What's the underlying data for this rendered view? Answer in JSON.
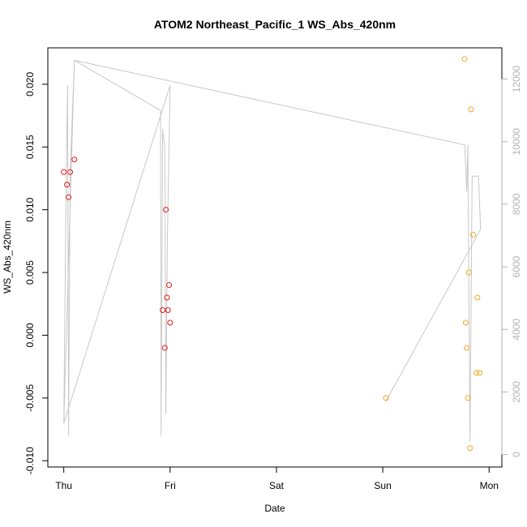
{
  "chart_data": {
    "type": "scatter",
    "title": "ATOM2 Northeast_Pacific_1 WS_Abs_420nm",
    "xlabel": "Date",
    "ylabel": "WS_Abs_420nm",
    "x_unit": "days",
    "x_ticks": [
      {
        "label": "Thu",
        "value": 0
      },
      {
        "label": "Fri",
        "value": 1
      },
      {
        "label": "Sat",
        "value": 2
      },
      {
        "label": "Sun",
        "value": 3
      },
      {
        "label": "Mon",
        "value": 4
      }
    ],
    "xlim": [
      -0.15,
      4.12
    ],
    "ylim": [
      -0.0105,
      0.0229
    ],
    "y_ticks": [
      {
        "label": "-0.010",
        "value": -0.01
      },
      {
        "label": "-0.005",
        "value": -0.005
      },
      {
        "label": "0.000",
        "value": 0
      },
      {
        "label": "0.005",
        "value": 0.005
      },
      {
        "label": "0.010",
        "value": 0.01
      },
      {
        "label": "0.015",
        "value": 0.015
      },
      {
        "label": "0.020",
        "value": 0.02
      }
    ],
    "y2_ticks": [
      {
        "label": "0",
        "value": 0
      },
      {
        "label": "2000",
        "value": 2000
      },
      {
        "label": "4000",
        "value": 4000
      },
      {
        "label": "6000",
        "value": 6000
      },
      {
        "label": "8000",
        "value": 8000
      },
      {
        "label": "10000",
        "value": 10000
      },
      {
        "label": "12000",
        "value": 12000
      }
    ],
    "y2lim": [
      -400,
      13000
    ],
    "grid": false,
    "series": [
      {
        "color": "#e41a1c",
        "marker": "open-circle",
        "points": [
          {
            "x": 0.0,
            "y": 0.013
          },
          {
            "x": 0.03,
            "y": 0.012
          },
          {
            "x": 0.045,
            "y": 0.011
          },
          {
            "x": 0.06,
            "y": 0.013
          },
          {
            "x": 0.1,
            "y": 0.014
          },
          {
            "x": 0.93,
            "y": 0.002
          },
          {
            "x": 0.95,
            "y": -0.001
          },
          {
            "x": 0.96,
            "y": 0.01
          },
          {
            "x": 0.97,
            "y": 0.003
          },
          {
            "x": 0.98,
            "y": 0.002
          },
          {
            "x": 0.99,
            "y": 0.004
          },
          {
            "x": 1.0,
            "y": 0.001
          }
        ]
      },
      {
        "color": "#f5a623",
        "marker": "open-circle",
        "points": [
          {
            "x": 3.03,
            "y": -0.005
          },
          {
            "x": 3.77,
            "y": 0.022
          },
          {
            "x": 3.78,
            "y": 0.001
          },
          {
            "x": 3.79,
            "y": -0.001
          },
          {
            "x": 3.8,
            "y": -0.005
          },
          {
            "x": 3.81,
            "y": 0.005
          },
          {
            "x": 3.82,
            "y": -0.009
          },
          {
            "x": 3.83,
            "y": 0.018
          },
          {
            "x": 3.85,
            "y": 0.008
          },
          {
            "x": 3.88,
            "y": -0.003
          },
          {
            "x": 3.89,
            "y": 0.003
          },
          {
            "x": 3.91,
            "y": -0.003
          }
        ]
      },
      {
        "axis": "right",
        "color": "#c8c8c8",
        "type": "line",
        "points": [
          {
            "x": 0.0,
            "y": 1000
          },
          {
            "x": 0.02,
            "y": 8000
          },
          {
            "x": 0.035,
            "y": 11800
          },
          {
            "x": 0.045,
            "y": 600
          },
          {
            "x": 0.06,
            "y": 9000
          },
          {
            "x": 0.1,
            "y": 12600
          },
          {
            "x": 0.91,
            "y": 11000
          },
          {
            "x": 0.915,
            "y": 600
          },
          {
            "x": 0.93,
            "y": 10400
          },
          {
            "x": 0.95,
            "y": 9800
          },
          {
            "x": 0.96,
            "y": 1300
          },
          {
            "x": 0.975,
            "y": 7000
          },
          {
            "x": 1.0,
            "y": 11800
          },
          {
            "x": 0.0,
            "y": 1000
          },
          {
            "x": 0.1,
            "y": 12600
          },
          {
            "x": 3.77,
            "y": 9900
          },
          {
            "x": 3.79,
            "y": 8400
          },
          {
            "x": 3.8,
            "y": 9900
          },
          {
            "x": 3.82,
            "y": 400
          },
          {
            "x": 3.84,
            "y": 8900
          },
          {
            "x": 3.9,
            "y": 8900
          },
          {
            "x": 3.92,
            "y": 7200
          },
          {
            "x": 3.03,
            "y": 1700
          },
          {
            "x": 3.92,
            "y": 7200
          }
        ]
      }
    ]
  }
}
